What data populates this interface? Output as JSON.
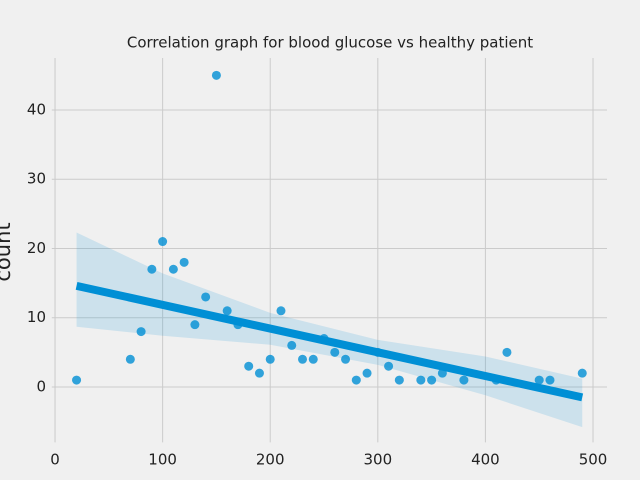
{
  "chart_data": {
    "type": "regplot",
    "title": "Correlation graph for blood glucose vs healthy patient",
    "y_label": "count",
    "xlim": [
      -3,
      513
    ],
    "ylim": [
      -8,
      47.5
    ],
    "xticks": [
      0,
      100,
      200,
      300,
      400,
      500
    ],
    "yticks": [
      0,
      10,
      20,
      30,
      40
    ],
    "grid": true,
    "color": "#008fd5",
    "points": {
      "x": [
        20,
        70,
        80,
        90,
        100,
        110,
        120,
        130,
        140,
        150,
        160,
        170,
        180,
        190,
        200,
        210,
        220,
        230,
        240,
        250,
        260,
        270,
        280,
        290,
        300,
        310,
        320,
        340,
        350,
        360,
        380,
        410,
        420,
        450,
        460,
        490
      ],
      "values": [
        1,
        4,
        8,
        17,
        21,
        17,
        18,
        9,
        13,
        45,
        11,
        9,
        3,
        2,
        4,
        11,
        6,
        4,
        4,
        7,
        5,
        4,
        1,
        2,
        5,
        3,
        1,
        1,
        1,
        2,
        1,
        1,
        5,
        1,
        1,
        2
      ]
    },
    "fit": {
      "x": [
        20,
        490
      ],
      "values": [
        14.6,
        -1.5
      ]
    },
    "band": {
      "x": [
        20,
        100,
        200,
        300,
        400,
        490
      ],
      "lower": [
        8.7,
        7.4,
        6.1,
        3.2,
        -1.2,
        -5.8
      ],
      "upper": [
        22.3,
        16.4,
        10.7,
        6.8,
        4.4,
        1.2
      ]
    }
  }
}
